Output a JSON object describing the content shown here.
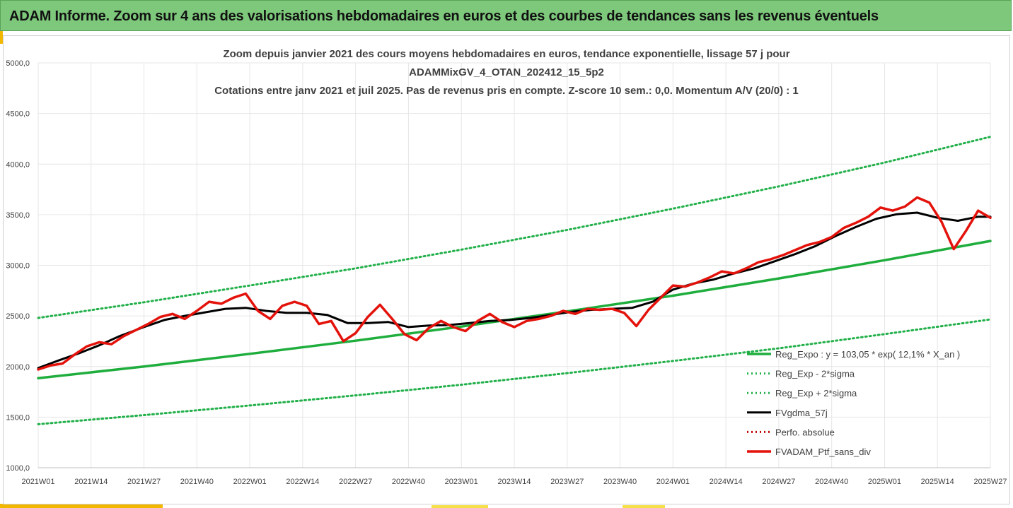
{
  "banner": {
    "title": "ADAM Informe. Zoom sur 4 ans des valorisations hebdomadaires en euros et des courbes de tendances sans les revenus éventuels"
  },
  "colors": {
    "banner_bg": "#7dc87b",
    "regression": "#1fae3d",
    "sigma_band": "#22b04a",
    "smoothed": "#000000",
    "perfo": "#c00000",
    "portfolio": "#e3120b",
    "gridline": "#e6e6e6"
  },
  "chart_data": {
    "type": "line",
    "title_lines": [
      "Zoom depuis janvier 2021 des cours moyens hebdomadaires  en euros, tendance exponentielle, lissage 57 j pour",
      "ADAMMixGV_4_OTAN_202412_15_5p2",
      "Cotations entre janv 2021 et juil 2025. Pas de revenus pris en compte. Z-score 10 sem.: 0,0. Momentum A/V (20/0) : 1"
    ],
    "ylim": [
      1000,
      5000
    ],
    "y_ticks": [
      "1000,0",
      "1500,0",
      "2000,0",
      "2500,0",
      "3000,0",
      "3500,0",
      "4000,0",
      "4500,0",
      "5000,0"
    ],
    "x_ticks": [
      "2021W01",
      "2021W14",
      "2021W27",
      "2021W40",
      "2022W01",
      "2022W14",
      "2022W27",
      "2022W40",
      "2023W01",
      "2023W14",
      "2023W27",
      "2023W40",
      "2024W01",
      "2024W14",
      "2024W27",
      "2024W40",
      "2025W01",
      "2025W14",
      "2025W27"
    ],
    "grid": true,
    "legend_position": "lower-right",
    "series": [
      {
        "name": "Reg_Expo : y = 103,05 * exp( 12,1% *  X_an )",
        "style": "solid-thick",
        "color": "#1fae3d",
        "x": [
          "2021W01",
          "2021W27",
          "2022W01",
          "2022W27",
          "2023W01",
          "2023W27",
          "2024W01",
          "2024W27",
          "2025W01",
          "2025W27"
        ],
        "values": [
          1885,
          2000,
          2125,
          2255,
          2395,
          2545,
          2700,
          2870,
          3050,
          3240
        ]
      },
      {
        "name": "Reg_Exp - 2*sigma",
        "style": "dotted",
        "color": "#22b04a",
        "x": [
          "2021W01",
          "2021W27",
          "2022W01",
          "2022W27",
          "2023W01",
          "2023W27",
          "2024W01",
          "2024W27",
          "2025W01",
          "2025W27"
        ],
        "values": [
          1430,
          1520,
          1615,
          1715,
          1820,
          1935,
          2055,
          2180,
          2320,
          2465
        ]
      },
      {
        "name": "Reg_Exp + 2*sigma",
        "style": "dotted",
        "color": "#22b04a",
        "x": [
          "2021W01",
          "2021W27",
          "2022W01",
          "2022W27",
          "2023W01",
          "2023W27",
          "2024W01",
          "2024W27",
          "2025W01",
          "2025W27"
        ],
        "values": [
          2480,
          2635,
          2800,
          2970,
          3155,
          3350,
          3560,
          3780,
          4015,
          4270
        ]
      },
      {
        "name": "FVgdma_57j",
        "style": "solid",
        "color": "#000000",
        "x": [
          "2021W01",
          "2021W06",
          "2021W11",
          "2021W16",
          "2021W21",
          "2021W27",
          "2021W32",
          "2021W37",
          "2021W42",
          "2021W47",
          "2021W52",
          "2022W05",
          "2022W10",
          "2022W15",
          "2022W20",
          "2022W25",
          "2022W30",
          "2022W35",
          "2022W40",
          "2022W45",
          "2022W50",
          "2023W03",
          "2023W08",
          "2023W13",
          "2023W18",
          "2023W23",
          "2023W28",
          "2023W33",
          "2023W38",
          "2023W43",
          "2023W48",
          "2024W01",
          "2024W06",
          "2024W11",
          "2024W16",
          "2024W21",
          "2024W26",
          "2024W31",
          "2024W36",
          "2024W41",
          "2024W46",
          "2024W51",
          "2025W04",
          "2025W09",
          "2025W14",
          "2025W19",
          "2025W24",
          "2025W27"
        ],
        "values": [
          1985,
          2060,
          2130,
          2210,
          2300,
          2390,
          2460,
          2500,
          2535,
          2570,
          2580,
          2550,
          2530,
          2530,
          2510,
          2430,
          2430,
          2440,
          2390,
          2405,
          2410,
          2430,
          2450,
          2460,
          2480,
          2510,
          2540,
          2560,
          2570,
          2580,
          2640,
          2760,
          2820,
          2860,
          2920,
          2970,
          3040,
          3110,
          3190,
          3290,
          3380,
          3460,
          3505,
          3520,
          3470,
          3440,
          3480,
          3480
        ]
      },
      {
        "name": "Perfo. absolue",
        "style": "dotted",
        "color": "#c00000",
        "x": [],
        "values": []
      },
      {
        "name": "FVADAM_Ptf_sans_div",
        "style": "solid-thick",
        "color": "#e3120b",
        "x": [
          "2021W01",
          "2021W04",
          "2021W07",
          "2021W10",
          "2021W13",
          "2021W16",
          "2021W19",
          "2021W22",
          "2021W25",
          "2021W28",
          "2021W31",
          "2021W34",
          "2021W37",
          "2021W40",
          "2021W43",
          "2021W46",
          "2021W49",
          "2021W52",
          "2022W03",
          "2022W06",
          "2022W09",
          "2022W12",
          "2022W15",
          "2022W18",
          "2022W21",
          "2022W24",
          "2022W27",
          "2022W30",
          "2022W33",
          "2022W36",
          "2022W39",
          "2022W42",
          "2022W45",
          "2022W48",
          "2022W51",
          "2023W02",
          "2023W05",
          "2023W08",
          "2023W11",
          "2023W14",
          "2023W17",
          "2023W20",
          "2023W23",
          "2023W26",
          "2023W29",
          "2023W32",
          "2023W35",
          "2023W38",
          "2023W41",
          "2023W44",
          "2023W47",
          "2023W50",
          "2024W01",
          "2024W04",
          "2024W07",
          "2024W10",
          "2024W13",
          "2024W16",
          "2024W19",
          "2024W22",
          "2024W25",
          "2024W28",
          "2024W31",
          "2024W34",
          "2024W37",
          "2024W40",
          "2024W43",
          "2024W46",
          "2024W49",
          "2024W52",
          "2025W03",
          "2025W06",
          "2025W09",
          "2025W12",
          "2025W15",
          "2025W18",
          "2025W21",
          "2025W24",
          "2025W27"
        ],
        "values": [
          1970,
          2010,
          2030,
          2120,
          2200,
          2240,
          2220,
          2300,
          2360,
          2420,
          2490,
          2520,
          2470,
          2550,
          2640,
          2620,
          2680,
          2720,
          2550,
          2470,
          2600,
          2640,
          2600,
          2420,
          2450,
          2250,
          2330,
          2490,
          2610,
          2470,
          2320,
          2260,
          2380,
          2450,
          2390,
          2350,
          2450,
          2520,
          2440,
          2390,
          2450,
          2470,
          2500,
          2550,
          2520,
          2570,
          2560,
          2570,
          2530,
          2400,
          2560,
          2680,
          2800,
          2790,
          2830,
          2880,
          2940,
          2920,
          2970,
          3030,
          3060,
          3100,
          3150,
          3200,
          3230,
          3280,
          3370,
          3420,
          3480,
          3570,
          3540,
          3580,
          3670,
          3620,
          3430,
          3160,
          3340,
          3540,
          3470
        ]
      }
    ]
  }
}
